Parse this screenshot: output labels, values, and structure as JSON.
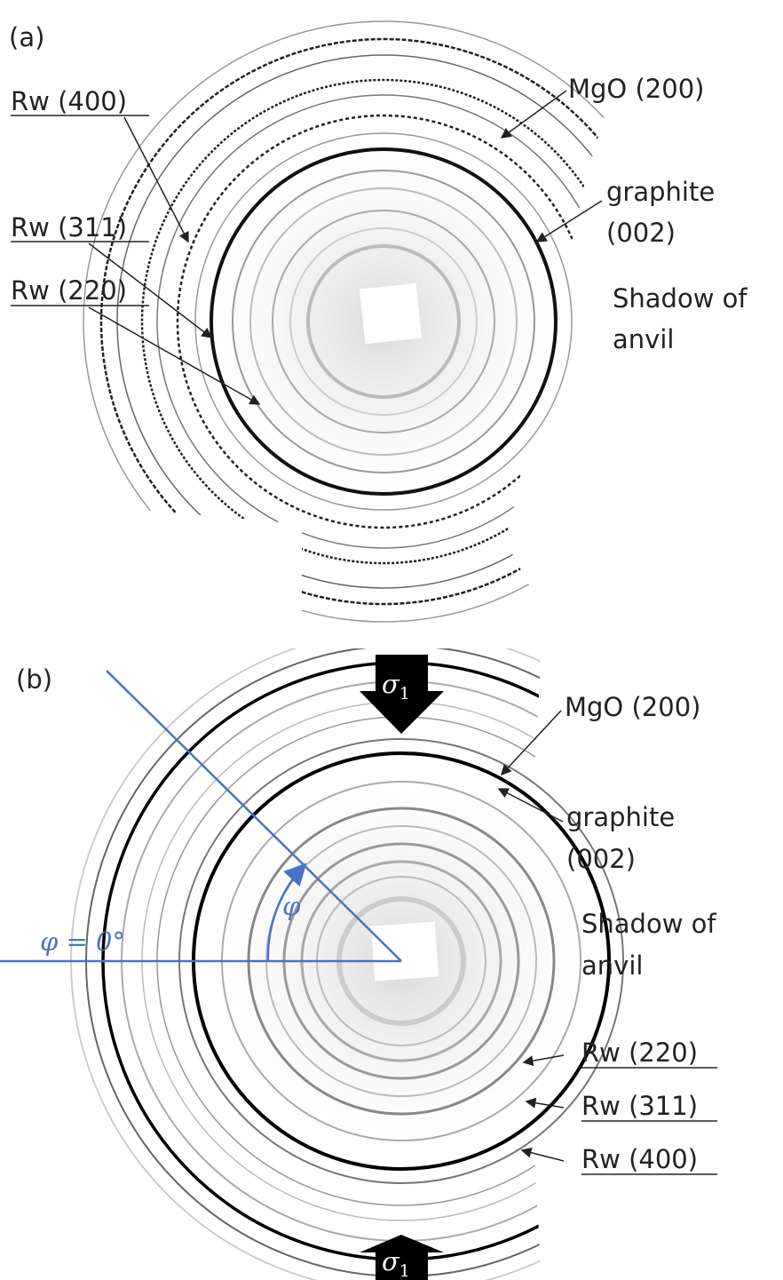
{
  "panel_a": {
    "label": "(a)",
    "rw_labels": [
      "Rw (400)",
      "Rw (311)",
      "Rw (220)"
    ],
    "mgo": "MgO (200)",
    "graphite": [
      "graphite",
      "(002)"
    ],
    "shadow": [
      "Shadow of",
      "anvil"
    ]
  },
  "panel_b": {
    "label": "(b)",
    "sigma_arrows": [
      {
        "symbol": "σ",
        "subscript": "1"
      },
      {
        "symbol": "σ",
        "subscript": "1"
      }
    ],
    "mgo": "MgO (200)",
    "graphite": [
      "graphite",
      "(002)"
    ],
    "shadow": [
      "Shadow of",
      "anvil"
    ],
    "rw_labels": [
      "Rw (220)",
      "Rw (311)",
      "Rw (400)"
    ],
    "angle_zero": "φ = 0°",
    "angle_symbol": "φ"
  }
}
